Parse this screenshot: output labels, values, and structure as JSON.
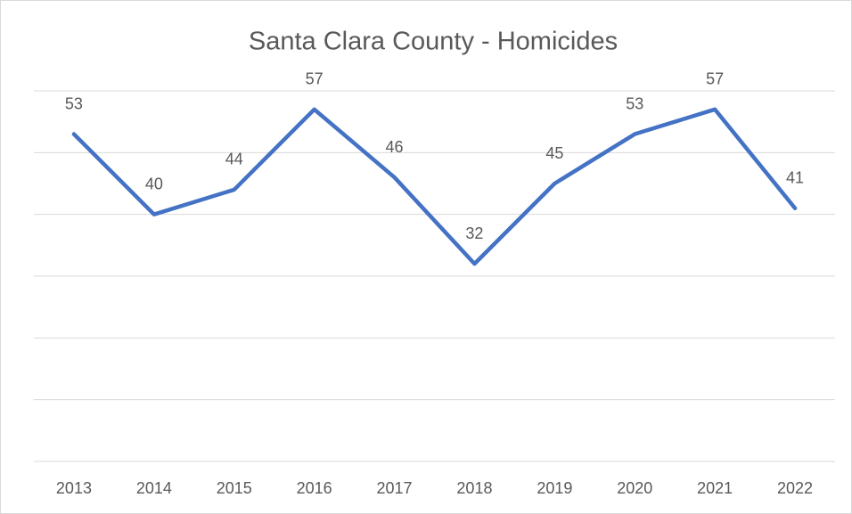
{
  "chart_data": {
    "type": "line",
    "title": "Santa Clara County - Homicides",
    "categories": [
      "2013",
      "2014",
      "2015",
      "2016",
      "2017",
      "2018",
      "2019",
      "2020",
      "2021",
      "2022"
    ],
    "series": [
      {
        "name": "Homicides",
        "color": "#4472c4",
        "values": [
          53,
          40,
          44,
          57,
          46,
          32,
          45,
          53,
          57,
          41
        ]
      }
    ],
    "ylim": [
      0,
      60
    ],
    "yticks": [
      0,
      10,
      20,
      30,
      40,
      50,
      60
    ],
    "grid": true,
    "data_labels": true
  }
}
